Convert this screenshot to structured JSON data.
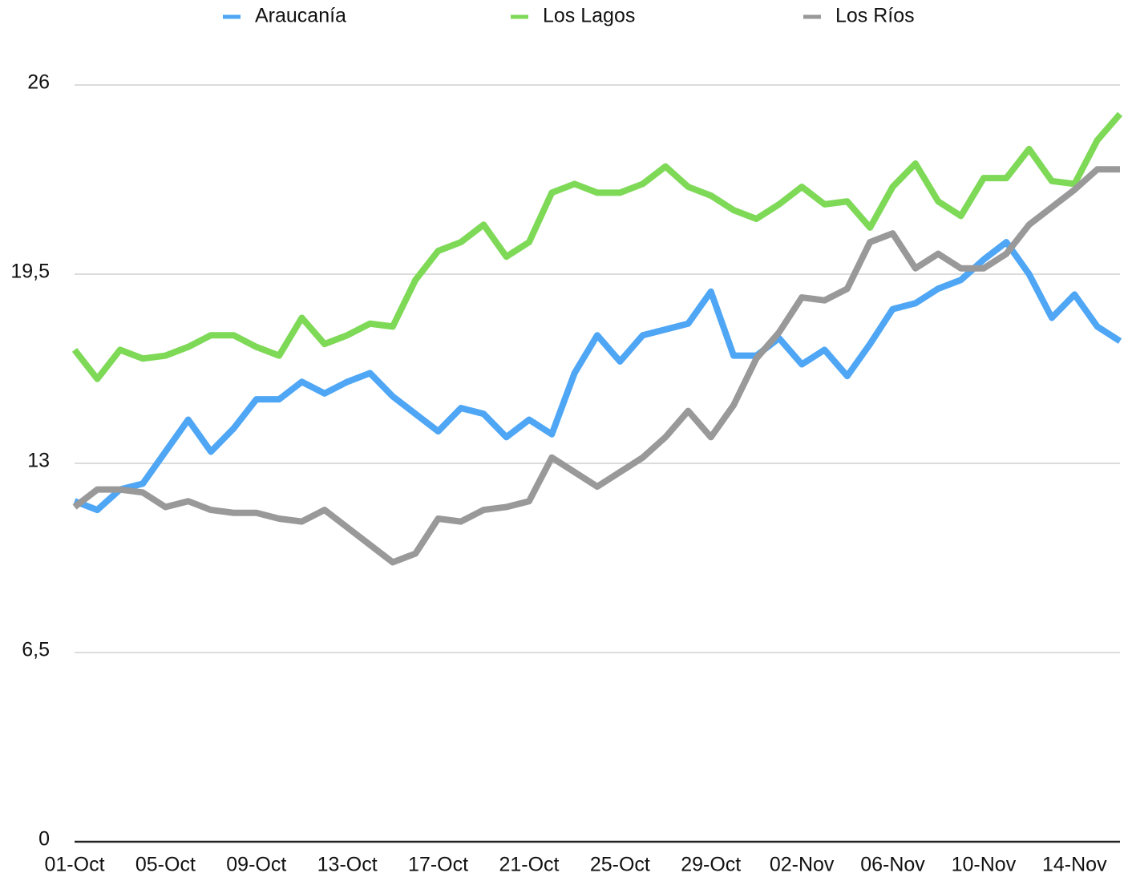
{
  "chart_data": {
    "type": "line",
    "categories": [
      "01-Oct",
      null,
      null,
      null,
      "05-Oct",
      null,
      null,
      null,
      "09-Oct",
      null,
      null,
      null,
      "13-Oct",
      null,
      null,
      null,
      "17-Oct",
      null,
      null,
      null,
      "21-Oct",
      null,
      null,
      null,
      "25-Oct",
      null,
      null,
      null,
      "29-Oct",
      null,
      null,
      null,
      "02-Nov",
      null,
      null,
      null,
      "06-Nov",
      null,
      null,
      null,
      "10-Nov",
      null,
      null,
      null,
      "14-Nov",
      null,
      null
    ],
    "series": [
      {
        "name": "Araucanía",
        "color": "#4ea6f5",
        "values": [
          11.7,
          11.4,
          12.1,
          12.3,
          13.4,
          14.5,
          13.4,
          14.2,
          15.2,
          15.2,
          15.8,
          15.4,
          15.8,
          16.1,
          15.3,
          14.7,
          14.1,
          14.9,
          14.7,
          13.9,
          14.5,
          14.0,
          16.1,
          17.4,
          16.5,
          17.4,
          17.6,
          17.8,
          18.9,
          16.7,
          16.7,
          17.3,
          16.4,
          16.9,
          16.0,
          17.1,
          18.3,
          18.5,
          19.0,
          19.3,
          20.0,
          20.6,
          19.5,
          18.0,
          18.8,
          17.7,
          17.2
        ]
      },
      {
        "name": "Los Lagos",
        "color": "#7ed957",
        "values": [
          16.9,
          15.9,
          16.9,
          16.6,
          16.7,
          17.0,
          17.4,
          17.4,
          17.0,
          16.7,
          18.0,
          17.1,
          17.4,
          17.8,
          17.7,
          19.3,
          20.3,
          20.6,
          21.2,
          20.1,
          20.6,
          22.3,
          22.6,
          22.3,
          22.3,
          22.6,
          23.2,
          22.5,
          22.2,
          21.7,
          21.4,
          21.9,
          22.5,
          21.9,
          22.0,
          21.1,
          22.5,
          23.3,
          22.0,
          21.5,
          22.8,
          22.8,
          23.8,
          22.7,
          22.6,
          24.1,
          25.0
        ]
      },
      {
        "name": "Los Ríos",
        "color": "#999999",
        "values": [
          11.5,
          12.1,
          12.1,
          12.0,
          11.5,
          11.7,
          11.4,
          11.3,
          11.3,
          11.1,
          11.0,
          11.4,
          10.8,
          10.2,
          9.6,
          9.9,
          11.1,
          11.0,
          11.4,
          11.5,
          11.7,
          13.2,
          12.7,
          12.2,
          12.7,
          13.2,
          13.9,
          14.8,
          13.9,
          15.0,
          16.6,
          17.5,
          18.7,
          18.6,
          19.0,
          20.6,
          20.9,
          19.7,
          20.2,
          19.7,
          19.7,
          20.2,
          21.2,
          21.8,
          22.4,
          23.1,
          23.1
        ]
      }
    ],
    "ylim": [
      0,
      26
    ],
    "yticks": [
      0,
      {
        "value": 6.5,
        "label": "6,5"
      },
      13,
      {
        "value": 19.5,
        "label": "19,5"
      },
      26
    ],
    "grid": true,
    "legend": "top"
  }
}
